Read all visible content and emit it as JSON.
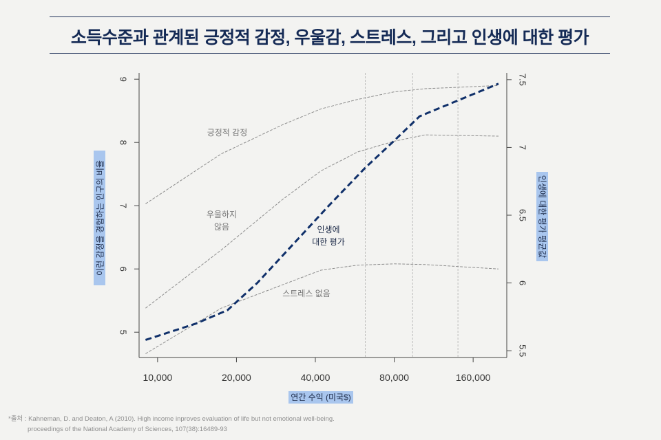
{
  "title": "소득수준과 관계된 긍정적 감정, 우울감, 스트레스, 그리고 인생에 대한 평가",
  "chart_data": {
    "type": "line",
    "x_scale": "log",
    "x_ticks": [
      10000,
      20000,
      40000,
      80000,
      160000
    ],
    "x_tick_labels": [
      "10,000",
      "20,000",
      "40,000",
      "80,000",
      "160,000"
    ],
    "x_lim": [
      8500,
      215000
    ],
    "x_ref_lines": [
      62000,
      94000,
      140000
    ],
    "xlabel": "연간 수익 (미국$)",
    "ylabel_left": "이런 감정을 경험하는 인구의 비율",
    "ylabel_right": "인생에 대한 평가 평균값",
    "y_left_lim": [
      4.6,
      9.1
    ],
    "y_left_ticks": [
      5,
      6,
      7,
      8,
      9
    ],
    "y_right_lim": [
      5.45,
      7.55
    ],
    "y_right_ticks": [
      5.5,
      6,
      6.5,
      7,
      7.5
    ],
    "series": [
      {
        "name": "긍정적 감정",
        "axis": "left",
        "style": "thin-dashed",
        "label": "긍정적 감정",
        "x": [
          9000,
          17500,
          30000,
          42000,
          58000,
          80000,
          105000,
          200000
        ],
        "y": [
          7.03,
          7.82,
          8.28,
          8.53,
          8.68,
          8.8,
          8.85,
          8.9
        ]
      },
      {
        "name": "우울하지 않음",
        "axis": "left",
        "style": "thin-dashed",
        "label": [
          "우울하지",
          "않음"
        ],
        "x": [
          9000,
          17500,
          30000,
          42000,
          58000,
          80000,
          105000,
          200000
        ],
        "y": [
          5.38,
          6.3,
          7.1,
          7.55,
          7.85,
          8.02,
          8.12,
          8.1
        ]
      },
      {
        "name": "스트레스 없음",
        "axis": "left",
        "style": "thin-dashed",
        "label": "스트레스 없음",
        "x": [
          9000,
          17500,
          30000,
          42000,
          58000,
          80000,
          105000,
          200000
        ],
        "y": [
          4.66,
          5.38,
          5.75,
          5.98,
          6.06,
          6.08,
          6.07,
          6.0
        ]
      },
      {
        "name": "인생에 대한 평가",
        "axis": "right",
        "style": "bold-dashed",
        "label": [
          "인생에",
          "대한 평가"
        ],
        "x": [
          9000,
          14000,
          18500,
          24000,
          32000,
          45000,
          62000,
          80000,
          100000,
          200000
        ],
        "y": [
          5.58,
          5.7,
          5.8,
          6.0,
          6.26,
          6.57,
          6.85,
          7.05,
          7.23,
          7.47
        ]
      }
    ],
    "colors": {
      "thin": "#8c8c8c",
      "bold": "#10306a",
      "axis": "#444444",
      "ref": "#b0b0b0"
    }
  },
  "source": {
    "line1": "*출처 : Kahneman, D. and Deaton, A (2010). High income inproves evaluation of life but not emotional well-being.",
    "line2": "proceedings of the National Academy of Sciences, 107(38):16489-93"
  }
}
